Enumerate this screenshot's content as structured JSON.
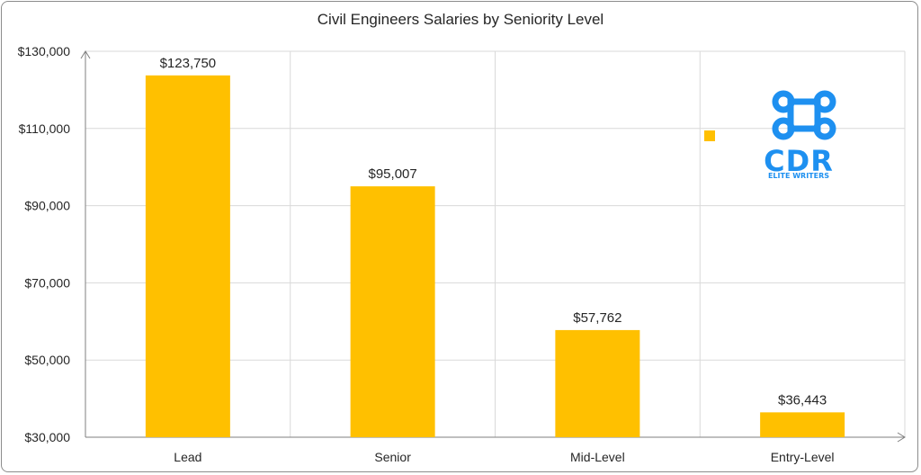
{
  "chart_data": {
    "type": "bar",
    "title": "Civil Engineers Salaries by Seniority Level",
    "categories": [
      "Lead",
      "Senior",
      "Mid-Level",
      "Entry-Level"
    ],
    "values": [
      123750,
      95007,
      57762,
      36443
    ],
    "data_labels": [
      "$123,750",
      "$95,007",
      "$57,762",
      "$36,443"
    ],
    "ylim": [
      30000,
      130000
    ],
    "yticks": [
      30000,
      50000,
      70000,
      90000,
      110000,
      130000
    ],
    "ytick_labels": [
      "$30,000",
      "$50,000",
      "$70,000",
      "$90,000",
      "$110,000",
      "$130,000"
    ],
    "xlabel": "",
    "ylabel": "",
    "grid": true,
    "bar_color": "#FFC000"
  },
  "logo": {
    "text": "CDR",
    "subtext": "ELITE WRITERS",
    "color": "#1E90F0",
    "icon": "command-key-icon"
  }
}
